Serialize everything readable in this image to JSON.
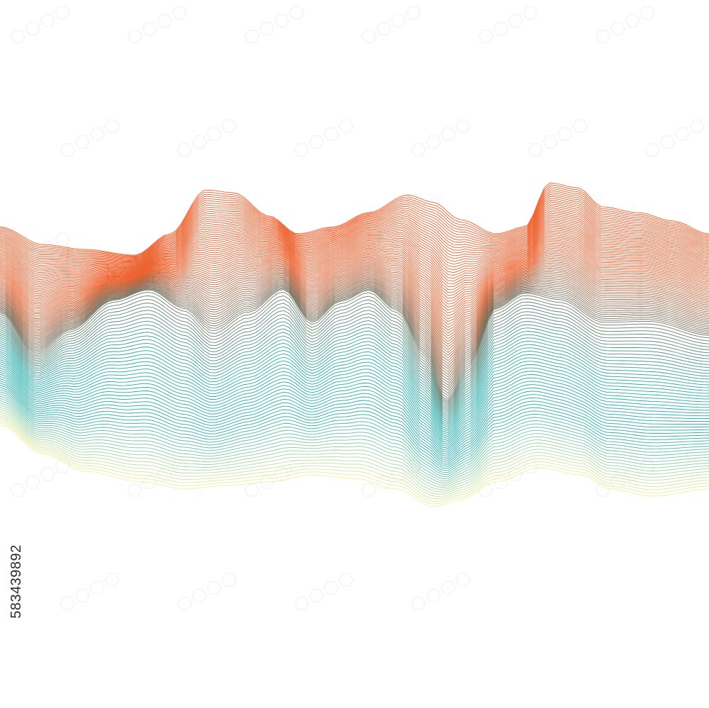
{
  "artwork": {
    "subject": "abstract-wave-lines",
    "line_count": 120,
    "colors": {
      "background": "#ffffff",
      "orange": "#ec5a24",
      "brown": "#7a6a55",
      "teal": "#18a7a6",
      "yellow": "#f2f098"
    }
  },
  "stock_id": "583439892",
  "watermark": {
    "repeat_count": 34
  }
}
